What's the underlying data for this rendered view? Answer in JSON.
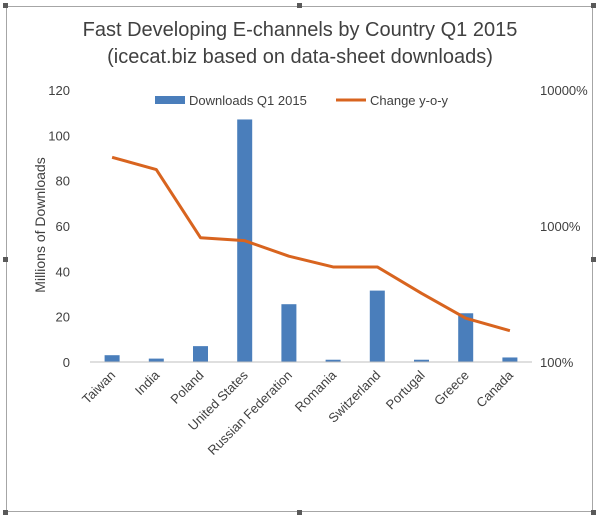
{
  "chart_data": {
    "type": "bar",
    "title": "Fast Developing E-channels by Country Q1 2015",
    "subtitle": "(icecat.biz based on data-sheet downloads)",
    "ylabel": "Millions of Downloads",
    "categories": [
      "Taiwan",
      "India",
      "Poland",
      "United States",
      "Russian Federation",
      "Romania",
      "Switzerland",
      "Portugal",
      "Greece",
      "Canada"
    ],
    "ylim": [
      0,
      120
    ],
    "yticks": [
      0,
      20,
      40,
      60,
      80,
      100,
      120
    ],
    "y2scale": "log",
    "y2lim": [
      100,
      10000
    ],
    "y2ticks": [
      "100%",
      "1000%",
      "10000%"
    ],
    "series": [
      {
        "name": "Downloads Q1 2015",
        "type": "bar",
        "axis": "left",
        "color": "#4a7ebb",
        "values": [
          3,
          1.5,
          7,
          107,
          25.5,
          1,
          31.5,
          1,
          21.5,
          2
        ]
      },
      {
        "name": "Change y-o-y",
        "type": "line",
        "axis": "right",
        "color": "#d8641f",
        "values": [
          3200,
          2600,
          820,
          780,
          600,
          500,
          500,
          320,
          210,
          170
        ]
      }
    ],
    "legend": "top",
    "grid": false
  }
}
